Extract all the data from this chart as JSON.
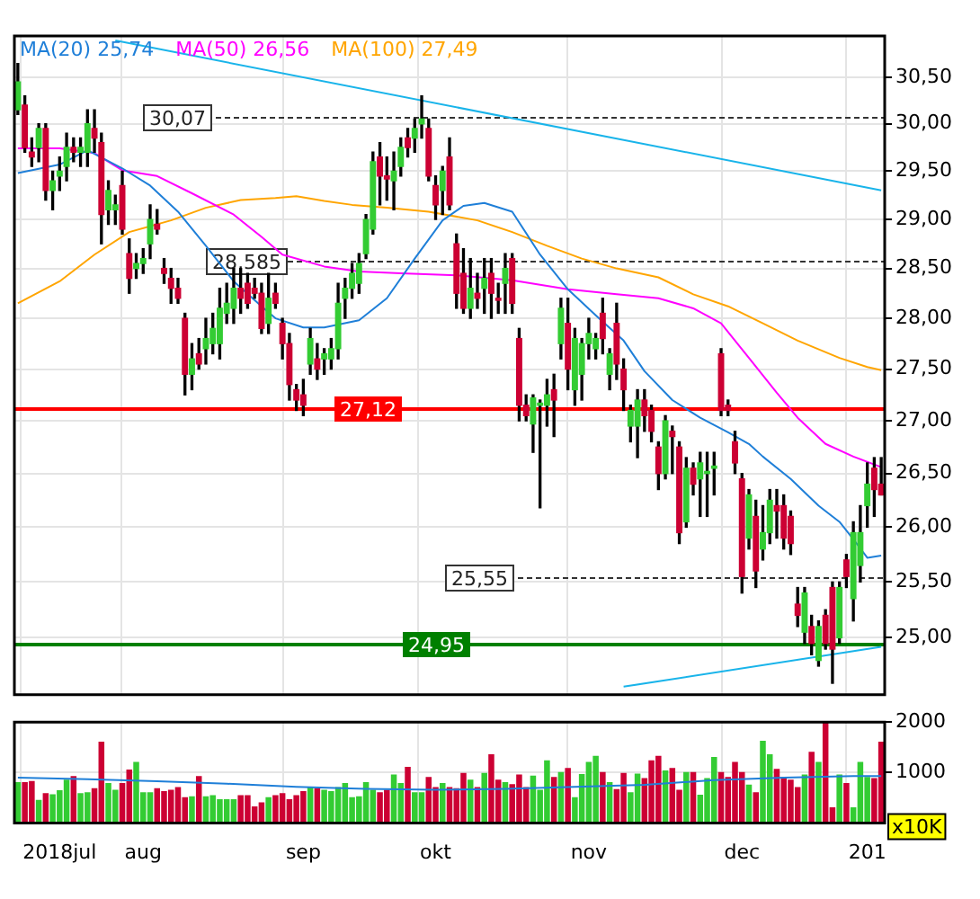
{
  "chart_data": [
    {
      "type": "candlestick",
      "legend": "top left",
      "log": true,
      "grid": true,
      "marker": "none",
      "tick_labels": "y",
      "categories": [
        null,
        null,
        null,
        null,
        null,
        null,
        "2018jul",
        null,
        null,
        null,
        null,
        null,
        null,
        null,
        null,
        null,
        null,
        null,
        "aug",
        null,
        null,
        null,
        null,
        null,
        null,
        null,
        null,
        null,
        null,
        null,
        null,
        null,
        null,
        null,
        null,
        null,
        null,
        null,
        null,
        null,
        null,
        "sep",
        null,
        null,
        null,
        null,
        null,
        null,
        null,
        null,
        null,
        null,
        null,
        null,
        null,
        null,
        null,
        null,
        null,
        null,
        "okt",
        null,
        null,
        null,
        null,
        null,
        null,
        null,
        null,
        null,
        null,
        null,
        null,
        null,
        null,
        null,
        null,
        null,
        null,
        null,
        null,
        null,
        "nov",
        null,
        null,
        null,
        null,
        null,
        null,
        null,
        null,
        null,
        null,
        null,
        null,
        null,
        null,
        null,
        null,
        null,
        null,
        null,
        null,
        null,
        "dec",
        null,
        null,
        null,
        null,
        null,
        null,
        null,
        null,
        null,
        null,
        null,
        null,
        null,
        null,
        null,
        null,
        null,
        "201",
        null,
        null
      ],
      "ylim": [
        24.5,
        30.95
      ],
      "yticks": [
        {
          "value": 25,
          "label": "25,00"
        },
        {
          "value": 25.5,
          "label": "25,50"
        },
        {
          "value": 26,
          "label": "26,00"
        },
        {
          "value": 26.5,
          "label": "26,50"
        },
        {
          "value": 27,
          "label": "27,00"
        },
        {
          "value": 27.5,
          "label": "27,50"
        },
        {
          "value": 28,
          "label": "28,00"
        },
        {
          "value": 28.5,
          "label": "28,50"
        },
        {
          "value": 29,
          "label": "29,00"
        },
        {
          "value": 29.5,
          "label": "29,50"
        },
        {
          "value": 30,
          "label": "30,00"
        },
        {
          "value": 30.5,
          "label": "30,50"
        }
      ],
      "ohlc": [
        [
          30.15,
          30.65,
          30.1,
          30.45
        ],
        [
          30.2,
          30.3,
          29.7,
          29.75
        ],
        [
          29.7,
          29.85,
          29.55,
          29.65
        ],
        [
          29.75,
          30.0,
          29.6,
          29.95
        ],
        [
          29.95,
          30.0,
          29.2,
          29.3
        ],
        [
          29.3,
          29.5,
          29.1,
          29.4
        ],
        [
          29.45,
          29.65,
          29.3,
          29.5
        ],
        [
          29.55,
          29.9,
          29.4,
          29.75
        ],
        [
          29.75,
          29.85,
          29.6,
          29.7
        ],
        [
          29.7,
          29.85,
          29.55,
          29.75
        ],
        [
          29.7,
          30.15,
          29.55,
          30.0
        ],
        [
          29.95,
          30.15,
          29.7,
          29.85
        ],
        [
          29.8,
          29.9,
          28.75,
          29.05
        ],
        [
          29.1,
          29.4,
          28.95,
          29.3
        ],
        [
          29.1,
          29.25,
          28.95,
          29.15
        ],
        [
          29.35,
          29.5,
          28.85,
          28.9
        ],
        [
          28.65,
          28.8,
          28.25,
          28.4
        ],
        [
          28.5,
          28.65,
          28.4,
          28.55
        ],
        [
          28.55,
          28.7,
          28.45,
          28.6
        ],
        [
          28.75,
          29.15,
          28.6,
          29.0
        ],
        [
          28.95,
          29.1,
          28.85,
          28.9
        ],
        [
          28.5,
          28.6,
          28.35,
          28.45
        ],
        [
          28.4,
          28.5,
          28.15,
          28.3
        ],
        [
          28.3,
          28.4,
          28.15,
          28.2
        ],
        [
          28.0,
          28.05,
          27.25,
          27.45
        ],
        [
          27.45,
          27.75,
          27.3,
          27.6
        ],
        [
          27.65,
          27.8,
          27.5,
          27.55
        ],
        [
          27.7,
          28.0,
          27.55,
          27.8
        ],
        [
          27.75,
          28.05,
          27.65,
          27.9
        ],
        [
          27.75,
          28.3,
          27.6,
          28.1
        ],
        [
          28.05,
          28.35,
          27.95,
          28.15
        ],
        [
          28.1,
          28.5,
          27.95,
          28.3
        ],
        [
          28.3,
          28.5,
          28.05,
          28.2
        ],
        [
          28.35,
          28.45,
          28.1,
          28.15
        ],
        [
          28.3,
          28.4,
          28.2,
          28.25
        ],
        [
          28.25,
          28.35,
          27.85,
          27.9
        ],
        [
          27.95,
          28.45,
          27.85,
          28.2
        ],
        [
          28.25,
          28.35,
          28.1,
          28.15
        ],
        [
          27.95,
          28.0,
          27.6,
          27.75
        ],
        [
          27.75,
          27.85,
          27.2,
          27.35
        ],
        [
          27.3,
          27.35,
          27.1,
          27.2
        ],
        [
          27.25,
          27.4,
          27.05,
          27.15
        ],
        [
          27.55,
          27.9,
          27.45,
          27.8
        ],
        [
          27.6,
          27.75,
          27.4,
          27.5
        ],
        [
          27.6,
          27.7,
          27.45,
          27.65
        ],
        [
          27.6,
          27.8,
          27.5,
          27.7
        ],
        [
          27.7,
          28.35,
          27.6,
          28.15
        ],
        [
          28.2,
          28.4,
          28.0,
          28.3
        ],
        [
          28.3,
          28.55,
          28.2,
          28.45
        ],
        [
          28.35,
          28.65,
          28.25,
          28.55
        ],
        [
          28.65,
          29.05,
          28.6,
          29.0
        ],
        [
          28.9,
          29.7,
          28.85,
          29.6
        ],
        [
          29.65,
          29.8,
          29.15,
          29.45
        ],
        [
          29.45,
          29.65,
          29.2,
          29.42
        ],
        [
          29.4,
          29.7,
          29.1,
          29.5
        ],
        [
          29.55,
          29.85,
          29.45,
          29.75
        ],
        [
          29.85,
          29.95,
          29.65,
          29.75
        ],
        [
          29.85,
          30.05,
          29.7,
          29.95
        ],
        [
          30.0,
          30.3,
          29.85,
          30.05
        ],
        [
          29.95,
          30.05,
          29.4,
          29.45
        ],
        [
          29.35,
          29.45,
          29.0,
          29.15
        ],
        [
          29.3,
          29.55,
          29.05,
          29.5
        ],
        [
          29.65,
          29.85,
          29.1,
          29.15
        ],
        [
          28.75,
          28.85,
          28.1,
          28.25
        ],
        [
          28.45,
          28.7,
          28.05,
          28.1
        ],
        [
          28.1,
          28.6,
          28.0,
          28.3
        ],
        [
          28.25,
          28.45,
          28.1,
          28.2
        ],
        [
          28.3,
          28.6,
          28.05,
          28.4
        ],
        [
          28.45,
          28.6,
          28.0,
          28.25
        ],
        [
          28.2,
          28.35,
          28.05,
          28.18
        ],
        [
          28.35,
          28.65,
          28.05,
          28.5
        ],
        [
          28.6,
          28.65,
          28.05,
          28.15
        ],
        [
          27.8,
          27.9,
          27.0,
          27.15
        ],
        [
          27.15,
          27.25,
          27.0,
          27.05
        ],
        [
          26.97,
          27.25,
          26.7,
          27.22
        ],
        [
          27.15,
          27.2,
          26.18,
          27.17
        ],
        [
          27.15,
          27.4,
          26.95,
          27.25
        ],
        [
          27.3,
          27.45,
          26.85,
          27.2
        ],
        [
          27.75,
          28.2,
          27.6,
          28.1
        ],
        [
          27.95,
          28.2,
          27.3,
          27.5
        ],
        [
          27.3,
          27.9,
          27.15,
          27.8
        ],
        [
          27.45,
          27.8,
          27.2,
          27.75
        ],
        [
          27.75,
          28.0,
          27.6,
          27.85
        ],
        [
          27.7,
          27.85,
          27.6,
          27.8
        ],
        [
          28.05,
          28.2,
          27.65,
          27.8
        ],
        [
          27.45,
          27.7,
          27.3,
          27.65
        ],
        [
          27.95,
          28.15,
          27.4,
          27.55
        ],
        [
          27.5,
          27.6,
          27.1,
          27.3
        ],
        [
          26.95,
          27.15,
          26.8,
          27.1
        ],
        [
          26.95,
          27.3,
          26.65,
          27.2
        ],
        [
          27.2,
          27.3,
          26.9,
          27.05
        ],
        [
          27.1,
          27.15,
          26.8,
          26.9
        ],
        [
          26.75,
          26.8,
          26.35,
          26.5
        ],
        [
          26.5,
          27.05,
          26.45,
          27.0
        ],
        [
          26.9,
          26.95,
          26.5,
          26.85
        ],
        [
          26.75,
          26.8,
          25.85,
          25.95
        ],
        [
          26.05,
          26.65,
          26.0,
          26.55
        ],
        [
          26.55,
          26.6,
          26.3,
          26.4
        ],
        [
          26.45,
          26.7,
          26.1,
          26.6
        ],
        [
          26.5,
          26.7,
          26.1,
          26.52
        ],
        [
          26.55,
          26.7,
          26.3,
          26.57
        ],
        [
          27.65,
          27.7,
          27.05,
          27.1
        ],
        [
          27.15,
          27.2,
          27.05,
          27.1
        ],
        [
          26.8,
          26.9,
          26.5,
          26.6
        ],
        [
          26.45,
          26.5,
          25.4,
          25.55
        ],
        [
          25.9,
          26.35,
          25.8,
          26.3
        ],
        [
          26.1,
          26.25,
          25.45,
          25.6
        ],
        [
          25.8,
          26.2,
          25.7,
          25.95
        ],
        [
          25.95,
          26.35,
          25.85,
          26.25
        ],
        [
          26.2,
          26.35,
          25.9,
          26.15
        ],
        [
          26.2,
          26.3,
          25.8,
          25.9
        ],
        [
          26.1,
          26.15,
          25.75,
          25.85
        ],
        [
          25.3,
          25.45,
          25.1,
          25.2
        ],
        [
          25.05,
          25.45,
          24.95,
          25.4
        ],
        [
          25.1,
          25.2,
          24.85,
          24.95
        ],
        [
          24.8,
          25.15,
          24.75,
          25.1
        ],
        [
          25.2,
          25.25,
          24.9,
          24.95
        ],
        [
          25.45,
          25.5,
          24.6,
          24.9
        ],
        [
          25.0,
          25.5,
          24.95,
          25.45
        ],
        [
          25.7,
          25.75,
          25.45,
          25.55
        ],
        [
          25.35,
          26.05,
          25.15,
          25.95
        ],
        [
          25.65,
          26.2,
          25.5,
          25.95
        ],
        [
          26.2,
          26.6,
          26.0,
          26.4
        ],
        [
          26.55,
          26.65,
          26.1,
          26.35
        ],
        [
          26.4,
          26.65,
          26.3,
          26.3
        ]
      ],
      "colors": [
        "#33cc33",
        "#cc0033",
        "#cc0033",
        "#33cc33",
        "#cc0033",
        "#33cc33",
        "#33cc33",
        "#33cc33",
        "#cc0033",
        "#33cc33",
        "#33cc33",
        "#cc0033",
        "#cc0033",
        "#33cc33",
        "#33cc33",
        "#cc0033",
        "#cc0033",
        "#33cc33",
        "#33cc33",
        "#33cc33",
        "#cc0033",
        "#cc0033",
        "#cc0033",
        "#cc0033",
        "#cc0033",
        "#33cc33",
        "#cc0033",
        "#33cc33",
        "#33cc33",
        "#33cc33",
        "#33cc33",
        "#33cc33",
        "#cc0033",
        "#cc0033",
        "#cc0033",
        "#cc0033",
        "#33cc33",
        "#cc0033",
        "#cc0033",
        "#cc0033",
        "#cc0033",
        "#cc0033",
        "#33cc33",
        "#cc0033",
        "#33cc33",
        "#33cc33",
        "#33cc33",
        "#33cc33",
        "#33cc33",
        "#33cc33",
        "#33cc33",
        "#33cc33",
        "#cc0033",
        "#cc0033",
        "#33cc33",
        "#33cc33",
        "#cc0033",
        "#33cc33",
        "#33cc33",
        "#cc0033",
        "#cc0033",
        "#33cc33",
        "#cc0033",
        "#cc0033",
        "#cc0033",
        "#33cc33",
        "#cc0033",
        "#33cc33",
        "#cc0033",
        "#cc0033",
        "#33cc33",
        "#cc0033",
        "#cc0033",
        "#cc0033",
        "#33cc33",
        "#33cc33",
        "#33cc33",
        "#cc0033",
        "#33cc33",
        "#cc0033",
        "#33cc33",
        "#33cc33",
        "#33cc33",
        "#33cc33",
        "#cc0033",
        "#33cc33",
        "#cc0033",
        "#cc0033",
        "#33cc33",
        "#33cc33",
        "#cc0033",
        "#cc0033",
        "#cc0033",
        "#33cc33",
        "#cc0033",
        "#cc0033",
        "#33cc33",
        "#cc0033",
        "#33cc33",
        "#33cc33",
        "#33cc33",
        "#cc0033",
        "#cc0033",
        "#cc0033",
        "#cc0033",
        "#33cc33",
        "#cc0033",
        "#33cc33",
        "#33cc33",
        "#cc0033",
        "#cc0033",
        "#cc0033",
        "#cc0033",
        "#33cc33",
        "#cc0033",
        "#33cc33",
        "#cc0033",
        "#cc0033",
        "#33cc33",
        "#cc0033",
        "#33cc33",
        "#33cc33",
        "#33cc33",
        "#cc0033",
        "#cc0033"
      ],
      "series": [
        {
          "type": "line",
          "name": "MA(20) 25,74",
          "color": "#1f7fd8",
          "values": [
            29.48,
            null,
            null,
            null,
            null,
            null,
            29.57,
            null,
            null,
            null,
            29.72,
            null,
            null,
            null,
            null,
            29.53,
            null,
            null,
            null,
            29.35,
            null,
            null,
            null,
            29.08,
            null,
            null,
            null,
            28.73,
            null,
            null,
            null,
            28.37,
            null,
            null,
            null,
            28.12,
            null,
            28.0,
            null,
            null,
            null,
            27.91,
            null,
            null,
            27.91,
            null,
            null,
            null,
            null,
            27.98,
            null,
            null,
            null,
            28.2,
            null,
            null,
            null,
            28.6,
            null,
            null,
            null,
            28.99,
            null,
            null,
            29.14,
            null,
            null,
            29.17,
            null,
            null,
            null,
            29.08,
            null,
            null,
            null,
            28.64,
            null,
            null,
            null,
            28.29,
            null,
            null,
            null,
            28.03,
            null,
            null,
            null,
            27.78,
            null,
            null,
            27.48,
            null,
            null,
            null,
            27.2,
            null,
            null,
            null,
            27.03,
            null,
            null,
            null,
            26.89,
            null,
            null,
            26.78,
            null,
            26.66,
            null,
            null,
            null,
            26.45,
            null,
            null,
            null,
            26.2,
            null,
            null,
            26.05,
            null,
            25.89,
            null,
            25.72,
            null,
            25.74
          ]
        },
        {
          "type": "line",
          "name": "MA(50) 26,56",
          "color": "#ff00ff",
          "values": [
            29.74,
            null,
            null,
            null,
            null,
            null,
            29.74,
            null,
            null,
            null,
            null,
            29.69,
            null,
            null,
            null,
            29.51,
            null,
            null,
            null,
            null,
            29.45,
            null,
            null,
            null,
            null,
            29.27,
            null,
            null,
            null,
            null,
            null,
            29.05,
            null,
            null,
            null,
            28.82,
            null,
            null,
            28.64,
            null,
            null,
            null,
            null,
            null,
            28.52,
            null,
            null,
            null,
            null,
            28.47,
            null,
            null,
            null,
            null,
            null,
            28.45,
            null,
            null,
            null,
            null,
            null,
            null,
            null,
            28.43,
            null,
            null,
            null,
            null,
            null,
            null,
            null,
            28.38,
            null,
            null,
            null,
            null,
            null,
            null,
            null,
            28.29,
            null,
            null,
            null,
            null,
            null,
            null,
            28.24,
            null,
            null,
            null,
            null,
            null,
            28.2,
            null,
            null,
            null,
            null,
            28.1,
            null,
            null,
            null,
            27.95,
            null,
            null,
            null,
            27.61,
            null,
            null,
            null,
            27.27,
            null,
            null,
            27.03,
            null,
            null,
            null,
            26.78,
            null,
            null,
            null,
            26.66,
            null,
            null,
            null,
            26.56
          ]
        },
        {
          "type": "line",
          "name": "MA(100) 27,49",
          "color": "#ffa500",
          "values": [
            28.15,
            null,
            null,
            null,
            null,
            null,
            28.37,
            null,
            null,
            null,
            null,
            28.64,
            null,
            null,
            null,
            null,
            28.87,
            null,
            null,
            null,
            null,
            null,
            28.99,
            null,
            null,
            null,
            null,
            29.12,
            null,
            null,
            null,
            null,
            29.2,
            null,
            null,
            null,
            null,
            29.22,
            null,
            null,
            29.24,
            null,
            null,
            null,
            29.19,
            null,
            null,
            null,
            29.15,
            null,
            null,
            null,
            null,
            29.12,
            null,
            null,
            null,
            null,
            null,
            29.08,
            null,
            null,
            null,
            null,
            null,
            null,
            28.99,
            null,
            null,
            null,
            null,
            28.87,
            null,
            null,
            null,
            null,
            28.73,
            null,
            null,
            null,
            null,
            28.6,
            null,
            null,
            null,
            null,
            28.5,
            null,
            null,
            null,
            null,
            null,
            28.41,
            null,
            null,
            null,
            null,
            28.24,
            null,
            null,
            null,
            null,
            28.12,
            null,
            null,
            null,
            null,
            27.95,
            null,
            null,
            null,
            null,
            27.78,
            null,
            null,
            null,
            null,
            null,
            27.61,
            null,
            null,
            null,
            27.52,
            null,
            27.49
          ]
        },
        {
          "type": "line",
          "color": "#19b4ea",
          "values": [
            null,
            null,
            null,
            null,
            null,
            null,
            null,
            null,
            null,
            null,
            null,
            null,
            null,
            null,
            30.9,
            null,
            null,
            null,
            null,
            null,
            null,
            null,
            null,
            null,
            null,
            null,
            null,
            null,
            null,
            null,
            null,
            null,
            null,
            null,
            null,
            null,
            null,
            null,
            null,
            null,
            null,
            null,
            null,
            null,
            null,
            null,
            null,
            null,
            null,
            null,
            null,
            null,
            null,
            null,
            null,
            null,
            null,
            null,
            null,
            null,
            null,
            null,
            null,
            null,
            null,
            null,
            null,
            null,
            null,
            null,
            null,
            null,
            null,
            null,
            null,
            null,
            null,
            null,
            null,
            null,
            null,
            null,
            null,
            null,
            null,
            null,
            null,
            null,
            null,
            null,
            null,
            null,
            null,
            null,
            null,
            null,
            null,
            null,
            null,
            null,
            null,
            null,
            null,
            null,
            null,
            null,
            null,
            null,
            null,
            null,
            null,
            null,
            null,
            null,
            null,
            null,
            null,
            null,
            null,
            null,
            null,
            null,
            null,
            null,
            29.3
          ]
        },
        {
          "type": "line",
          "color": "#19b4ea",
          "values": [
            null,
            null,
            null,
            null,
            null,
            null,
            null,
            null,
            null,
            null,
            null,
            null,
            null,
            null,
            null,
            null,
            null,
            null,
            null,
            null,
            null,
            null,
            null,
            null,
            null,
            null,
            null,
            null,
            null,
            null,
            null,
            null,
            null,
            null,
            null,
            null,
            null,
            null,
            null,
            null,
            null,
            null,
            null,
            null,
            null,
            null,
            null,
            null,
            null,
            null,
            null,
            null,
            null,
            null,
            null,
            null,
            null,
            null,
            null,
            null,
            null,
            null,
            null,
            null,
            null,
            null,
            null,
            null,
            null,
            null,
            null,
            null,
            null,
            null,
            null,
            null,
            null,
            null,
            null,
            null,
            null,
            null,
            null,
            null,
            null,
            null,
            null,
            24.57,
            null,
            null,
            null,
            null,
            null,
            null,
            null,
            null,
            null,
            null,
            null,
            null,
            null,
            null,
            null,
            null,
            null,
            null,
            null,
            null,
            null,
            null,
            null,
            null,
            null,
            null,
            null,
            null,
            null,
            null,
            null,
            null,
            null,
            null,
            null,
            null,
            24.92
          ]
        }
      ],
      "ref_lines": [
        {
          "axis": "y",
          "value": 30.07,
          "label": "30,07",
          "color": "#333333",
          "line_style": "dashed"
        },
        {
          "axis": "y",
          "value": 28.585,
          "label": "28,585",
          "color": "#333333",
          "line_style": "dashed"
        },
        {
          "axis": "y",
          "value": 27.12,
          "label": "27,12",
          "color": "#ff0000",
          "line_style": "solid"
        },
        {
          "axis": "y",
          "value": 25.55,
          "label": "25,55",
          "color": "#333333",
          "line_style": "dashed"
        },
        {
          "axis": "y",
          "value": 24.95,
          "label": "24,95",
          "color": "#008000",
          "line_style": "solid"
        }
      ]
    },
    {
      "type": "bar",
      "grid": true,
      "annotations": [
        "x10K"
      ],
      "categories": [
        null,
        null,
        null,
        null,
        null,
        null,
        "2018jul",
        null,
        null,
        null,
        null,
        null,
        null,
        null,
        null,
        null,
        null,
        null,
        "aug",
        null,
        null,
        null,
        null,
        null,
        null,
        null,
        null,
        null,
        null,
        null,
        null,
        null,
        null,
        null,
        null,
        null,
        null,
        null,
        null,
        null,
        null,
        "sep",
        null,
        null,
        null,
        null,
        null,
        null,
        null,
        null,
        null,
        null,
        null,
        null,
        null,
        null,
        null,
        null,
        null,
        null,
        "okt",
        null,
        null,
        null,
        null,
        null,
        null,
        null,
        null,
        null,
        null,
        null,
        null,
        null,
        null,
        null,
        null,
        null,
        null,
        null,
        null,
        null,
        "nov",
        null,
        null,
        null,
        null,
        null,
        null,
        null,
        null,
        null,
        null,
        null,
        null,
        null,
        null,
        null,
        null,
        null,
        null,
        null,
        null,
        null,
        "dec",
        null,
        null,
        null,
        null,
        null,
        null,
        null,
        null,
        null,
        null,
        null,
        null,
        null,
        null,
        null,
        null,
        null,
        "201",
        null,
        null
      ],
      "ylim": [
        0,
        2000
      ],
      "yticks": [
        1000,
        2000
      ],
      "values": [
        800,
        800,
        820,
        450,
        580,
        560,
        640,
        850,
        920,
        580,
        600,
        680,
        1600,
        780,
        650,
        780,
        1050,
        1200,
        600,
        600,
        680,
        620,
        650,
        700,
        500,
        520,
        920,
        520,
        540,
        460,
        460,
        460,
        540,
        540,
        320,
        400,
        500,
        540,
        580,
        460,
        540,
        620,
        700,
        680,
        650,
        620,
        700,
        780,
        500,
        520,
        800,
        650,
        600,
        650,
        950,
        780,
        1100,
        600,
        600,
        900,
        700,
        780,
        700,
        680,
        980,
        850,
        700,
        980,
        1350,
        850,
        800,
        760,
        950,
        700,
        930,
        650,
        1230,
        900,
        1000,
        1080,
        500,
        960,
        1200,
        1320,
        1000,
        800,
        660,
        980,
        600,
        970,
        880,
        1230,
        1320,
        1030,
        1080,
        650,
        1000,
        1000,
        550,
        880,
        1300,
        1000,
        900,
        1200,
        1000,
        750,
        600,
        1620,
        1350,
        1060,
        900,
        850,
        700,
        950,
        1400,
        1200,
        2000,
        300,
        950,
        780,
        300,
        1200,
        900,
        880,
        1600
      ],
      "colors": [
        "#33cc33",
        "#cc0033",
        "#cc0033",
        "#33cc33",
        "#cc0033",
        "#33cc33",
        "#33cc33",
        "#33cc33",
        "#cc0033",
        "#33cc33",
        "#33cc33",
        "#cc0033",
        "#cc0033",
        "#33cc33",
        "#33cc33",
        "#cc0033",
        "#cc0033",
        "#33cc33",
        "#33cc33",
        "#33cc33",
        "#cc0033",
        "#cc0033",
        "#cc0033",
        "#cc0033",
        "#cc0033",
        "#33cc33",
        "#cc0033",
        "#33cc33",
        "#33cc33",
        "#33cc33",
        "#33cc33",
        "#33cc33",
        "#cc0033",
        "#cc0033",
        "#cc0033",
        "#cc0033",
        "#33cc33",
        "#cc0033",
        "#cc0033",
        "#cc0033",
        "#cc0033",
        "#cc0033",
        "#33cc33",
        "#cc0033",
        "#33cc33",
        "#33cc33",
        "#33cc33",
        "#33cc33",
        "#33cc33",
        "#33cc33",
        "#33cc33",
        "#33cc33",
        "#cc0033",
        "#cc0033",
        "#33cc33",
        "#33cc33",
        "#cc0033",
        "#33cc33",
        "#33cc33",
        "#cc0033",
        "#cc0033",
        "#33cc33",
        "#cc0033",
        "#cc0033",
        "#cc0033",
        "#33cc33",
        "#cc0033",
        "#33cc33",
        "#cc0033",
        "#cc0033",
        "#33cc33",
        "#cc0033",
        "#cc0033",
        "#cc0033",
        "#33cc33",
        "#33cc33",
        "#33cc33",
        "#cc0033",
        "#33cc33",
        "#cc0033",
        "#33cc33",
        "#33cc33",
        "#33cc33",
        "#33cc33",
        "#cc0033",
        "#33cc33",
        "#cc0033",
        "#cc0033",
        "#33cc33",
        "#33cc33",
        "#cc0033",
        "#cc0033",
        "#cc0033",
        "#33cc33",
        "#cc0033",
        "#cc0033",
        "#33cc33",
        "#cc0033",
        "#33cc33",
        "#33cc33",
        "#33cc33",
        "#cc0033",
        "#cc0033",
        "#cc0033",
        "#cc0033",
        "#33cc33",
        "#cc0033",
        "#33cc33",
        "#33cc33",
        "#cc0033",
        "#cc0033",
        "#cc0033",
        "#cc0033",
        "#33cc33",
        "#cc0033",
        "#33cc33",
        "#cc0033",
        "#cc0033",
        "#33cc33",
        "#cc0033",
        "#33cc33",
        "#33cc33",
        "#33cc33",
        "#cc0033",
        "#cc0033"
      ],
      "series": [
        {
          "type": "line",
          "color": "#1f7fd8",
          "values": [
            900,
            null,
            null,
            null,
            null,
            null,
            null,
            null,
            null,
            null,
            870,
            null,
            null,
            null,
            null,
            null,
            null,
            null,
            null,
            null,
            830,
            null,
            null,
            null,
            null,
            null,
            null,
            null,
            null,
            null,
            780,
            null,
            null,
            null,
            null,
            null,
            null,
            null,
            null,
            null,
            720,
            null,
            null,
            null,
            null,
            null,
            null,
            null,
            null,
            null,
            680,
            null,
            null,
            null,
            null,
            null,
            null,
            null,
            null,
            null,
            660,
            null,
            null,
            null,
            null,
            null,
            null,
            null,
            null,
            null,
            680,
            null,
            null,
            null,
            null,
            null,
            null,
            null,
            null,
            null,
            720,
            null,
            null,
            null,
            null,
            null,
            null,
            null,
            null,
            null,
            760,
            null,
            null,
            null,
            null,
            null,
            null,
            null,
            null,
            null,
            850,
            null,
            null,
            null,
            null,
            null,
            null,
            null,
            null,
            null,
            900,
            null,
            null,
            null,
            null,
            null,
            null,
            null,
            null,
            null,
            930,
            null,
            null,
            null,
            930
          ]
        }
      ]
    }
  ]
}
